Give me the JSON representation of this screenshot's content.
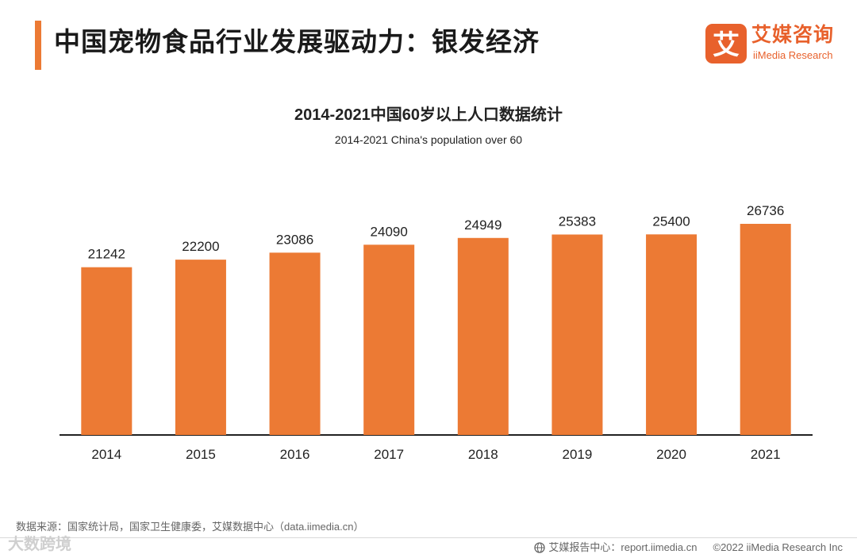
{
  "header": {
    "title": "中国宠物食品行业发展驱动力：银发经济",
    "logo_cn": "艾媒咨询",
    "logo_en": "iiMedia Research",
    "logo_mark_char": "艾"
  },
  "colors": {
    "accent": "#ec7a34",
    "bar": "#ec7a34",
    "brand": "#e8612c",
    "axis": "#222222"
  },
  "chart_data": {
    "type": "bar",
    "title": "2014-2021中国60岁以上人口数据统计",
    "subtitle": "2014-2021 China's population over 60",
    "categories": [
      "2014",
      "2015",
      "2016",
      "2017",
      "2018",
      "2019",
      "2020",
      "2021"
    ],
    "values": [
      21242,
      22200,
      23086,
      24090,
      24949,
      25383,
      25400,
      26736
    ],
    "xlabel": "",
    "ylabel": "",
    "ylim": [
      0,
      26736
    ],
    "grid": false,
    "legend": "none"
  },
  "footer": {
    "source": "数据来源：国家统计局，国家卫生健康委，艾媒数据中心（data.iimedia.cn）",
    "watermark": "大数跨境",
    "report_center": "艾媒报告中心：report.iimedia.cn",
    "copyright": "©2022  iiMedia Research  Inc"
  }
}
